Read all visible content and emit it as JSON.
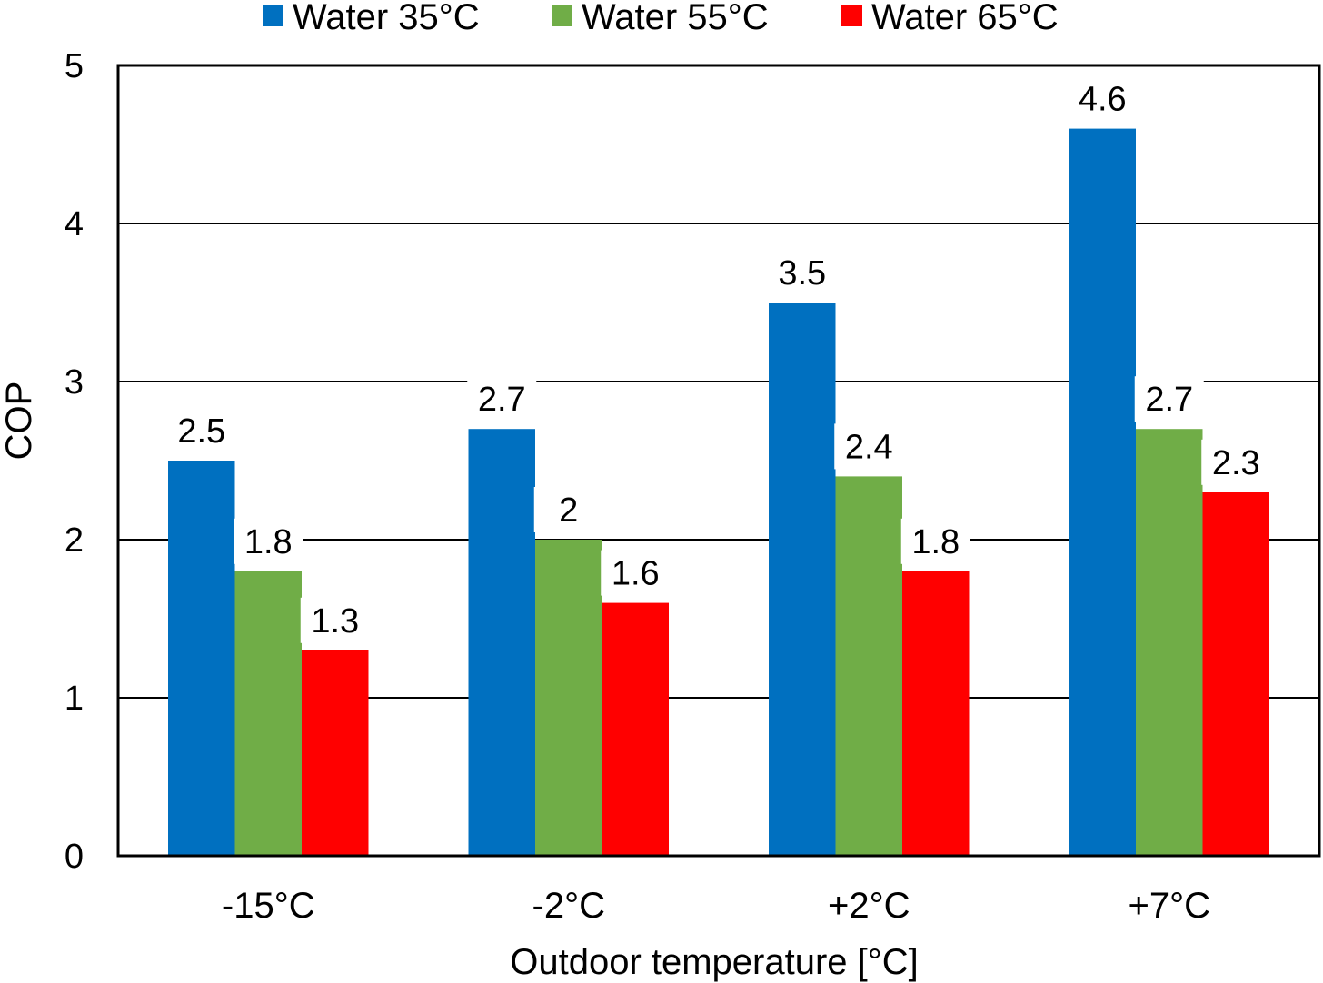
{
  "chart_data": {
    "type": "bar",
    "title": "",
    "xlabel": "Outdoor temperature [°C]",
    "ylabel": "COP",
    "ylim": [
      0,
      5
    ],
    "yticks": [
      0,
      1,
      2,
      3,
      4,
      5
    ],
    "ytick_labels": [
      "0",
      "1",
      "2",
      "3",
      "4",
      "5"
    ],
    "grid": true,
    "legend_position": "top",
    "categories": [
      "-15°C",
      "-2°C",
      "+2°C",
      "+7°C"
    ],
    "series": [
      {
        "name": "Water 35°C",
        "color": "#0070C0",
        "values": [
          2.5,
          2.7,
          3.5,
          4.6
        ],
        "labels": [
          "2.5",
          "2.7",
          "3.5",
          "4.6"
        ]
      },
      {
        "name": "Water 55°C",
        "color": "#70AD47",
        "values": [
          1.8,
          2.0,
          2.4,
          2.7
        ],
        "labels": [
          "1.8",
          "2",
          "2.4",
          "2.7"
        ]
      },
      {
        "name": "Water 65°C",
        "color": "#FF0000",
        "values": [
          1.3,
          1.6,
          1.8,
          2.3
        ],
        "labels": [
          "1.3",
          "1.6",
          "1.8",
          "2.3"
        ]
      }
    ]
  }
}
